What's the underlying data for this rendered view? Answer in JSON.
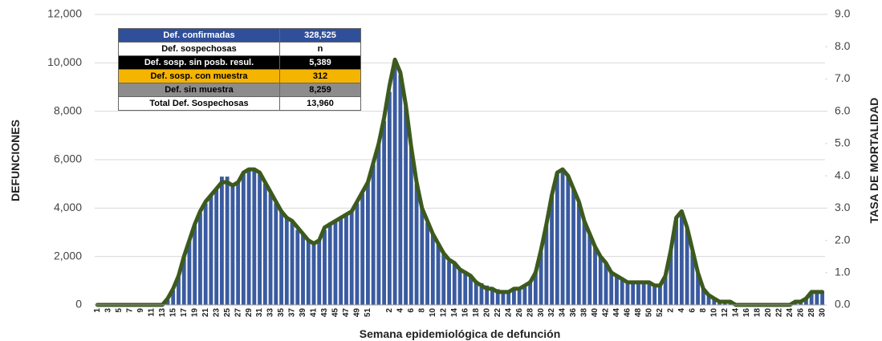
{
  "chart_data": {
    "type": "bar",
    "x_label": "Semana epidemiológica de defunción",
    "y_label": "DEFUNCIONES",
    "y2_label": "TASA DE MORTALIDAD",
    "categories": [
      "1",
      null,
      "3",
      null,
      "5",
      null,
      "7",
      null,
      "9",
      null,
      "11",
      null,
      "13",
      null,
      "15",
      null,
      "17",
      null,
      "19",
      null,
      "21",
      null,
      "23",
      null,
      "25",
      null,
      "27",
      null,
      "29",
      null,
      "31",
      null,
      "33",
      null,
      "35",
      null,
      "37",
      null,
      "39",
      null,
      "41",
      null,
      "43",
      null,
      "45",
      null,
      "47",
      null,
      "49",
      null,
      "51",
      null,
      null,
      null,
      "2",
      null,
      "4",
      null,
      "6",
      null,
      "8",
      null,
      "10",
      null,
      "12",
      null,
      "14",
      null,
      "16",
      null,
      "18",
      null,
      "20",
      null,
      "22",
      null,
      "24",
      null,
      "26",
      null,
      "28",
      null,
      "30",
      null,
      "32",
      null,
      "34",
      null,
      "36",
      null,
      "38",
      null,
      "40",
      null,
      "42",
      null,
      "44",
      null,
      "46",
      null,
      "48",
      null,
      "50",
      null,
      "52",
      null,
      "2",
      null,
      "4",
      null,
      "6",
      null,
      "8",
      null,
      "10",
      null,
      "12",
      null,
      "14",
      null,
      "16",
      null,
      "18",
      null,
      "20",
      null,
      "22",
      null,
      "24",
      null,
      "26",
      null,
      "28",
      null,
      "30"
    ],
    "series": [
      {
        "color": "#3a5ba0",
        "values": [
          0,
          0,
          0,
          0,
          0,
          0,
          0,
          0,
          0,
          0,
          0,
          0,
          50,
          200,
          600,
          1200,
          2000,
          2700,
          3300,
          3800,
          4200,
          4500,
          4800,
          5300,
          5300,
          5000,
          5100,
          5400,
          5600,
          5600,
          5400,
          5000,
          4600,
          4200,
          3900,
          3600,
          3400,
          3100,
          2900,
          2700,
          2600,
          2700,
          3100,
          3400,
          3500,
          3600,
          3700,
          3900,
          4200,
          4600,
          5100,
          5800,
          6700,
          7600,
          8800,
          9900,
          9500,
          8200,
          6500,
          5000,
          4000,
          3400,
          2900,
          2500,
          2100,
          1800,
          1700,
          1500,
          1400,
          1200,
          1000,
          900,
          800,
          700,
          650,
          600,
          600,
          650,
          700,
          800,
          1000,
          1400,
          2200,
          3300,
          4500,
          5400,
          5600,
          5300,
          4800,
          4200,
          3500,
          2900,
          2400,
          2000,
          1700,
          1400,
          1200,
          1050,
          1000,
          950,
          950,
          950,
          900,
          850,
          800,
          1200,
          2300,
          3600,
          3900,
          3200,
          2200,
          1300,
          700,
          400,
          250,
          150,
          100,
          80,
          60,
          50,
          40,
          30,
          30,
          30,
          30,
          30,
          30,
          30,
          30,
          80,
          150,
          300,
          500,
          550,
          550
        ]
      },
      {
        "type": "line",
        "axis": "y2",
        "color": "#3d5a1e",
        "values": [
          0,
          0,
          0,
          0,
          0,
          0,
          0,
          0,
          0,
          0,
          0,
          0,
          0.0,
          0.2,
          0.5,
          0.9,
          1.5,
          2.0,
          2.5,
          2.9,
          3.2,
          3.4,
          3.6,
          3.8,
          3.8,
          3.7,
          3.8,
          4.1,
          4.2,
          4.2,
          4.1,
          3.8,
          3.5,
          3.2,
          2.9,
          2.7,
          2.6,
          2.4,
          2.2,
          2.0,
          1.9,
          2.0,
          2.4,
          2.5,
          2.6,
          2.7,
          2.8,
          2.9,
          3.2,
          3.5,
          3.8,
          4.4,
          5.0,
          5.8,
          6.8,
          7.6,
          7.2,
          6.2,
          4.9,
          3.8,
          3.0,
          2.6,
          2.2,
          1.9,
          1.6,
          1.4,
          1.3,
          1.1,
          1.0,
          0.9,
          0.7,
          0.6,
          0.5,
          0.5,
          0.4,
          0.4,
          0.4,
          0.5,
          0.5,
          0.6,
          0.7,
          1.0,
          1.7,
          2.5,
          3.4,
          4.1,
          4.2,
          4.0,
          3.6,
          3.2,
          2.6,
          2.2,
          1.8,
          1.5,
          1.3,
          1.0,
          0.9,
          0.8,
          0.7,
          0.7,
          0.7,
          0.7,
          0.7,
          0.6,
          0.6,
          0.9,
          1.7,
          2.7,
          2.9,
          2.4,
          1.7,
          1.0,
          0.5,
          0.3,
          0.2,
          0.1,
          0.1,
          0.1,
          0.0,
          0.0,
          0.0,
          0.0,
          0.0,
          0.0,
          0.0,
          0.0,
          0.0,
          0.0,
          0.0,
          0.1,
          0.1,
          0.2,
          0.4,
          0.4,
          0.4
        ]
      }
    ],
    "ylim": [
      0,
      12000
    ],
    "yticks": [
      0,
      {
        "value": 2000,
        "label": "2,000"
      },
      {
        "value": 4000,
        "label": "4,000"
      },
      {
        "value": 6000,
        "label": "6,000"
      },
      {
        "value": 8000,
        "label": "8,000"
      },
      {
        "value": 10000,
        "label": "10,000"
      },
      {
        "value": 12000,
        "label": "12,000"
      }
    ],
    "y2lim": [
      0,
      9
    ],
    "y2ticks": [
      {
        "value": 0,
        "label": "0.0"
      },
      {
        "value": 1,
        "label": "1.0"
      },
      {
        "value": 2,
        "label": "2.0"
      },
      {
        "value": 3,
        "label": "3.0"
      },
      {
        "value": 4,
        "label": "4.0"
      },
      {
        "value": 5,
        "label": "5.0"
      },
      {
        "value": 6,
        "label": "6.0"
      },
      {
        "value": 7,
        "label": "7.0"
      },
      {
        "value": 8,
        "label": "8.0"
      },
      {
        "value": 9,
        "label": "9.0"
      }
    ],
    "grid": true,
    "table": [
      {
        "label": "Def. confirmadas",
        "value": "328,525"
      },
      {
        "label": "Def. sospechosas",
        "value": "n"
      },
      {
        "label": "Def. sosp. sin posb. resul.",
        "value": "5,389"
      },
      {
        "label": "Def. sosp. con  muestra",
        "value": "312"
      },
      {
        "label": "Def. sin muestra",
        "value": "8,259"
      },
      {
        "label": "Total Def. Sospechosas",
        "value": "13,960"
      }
    ]
  }
}
